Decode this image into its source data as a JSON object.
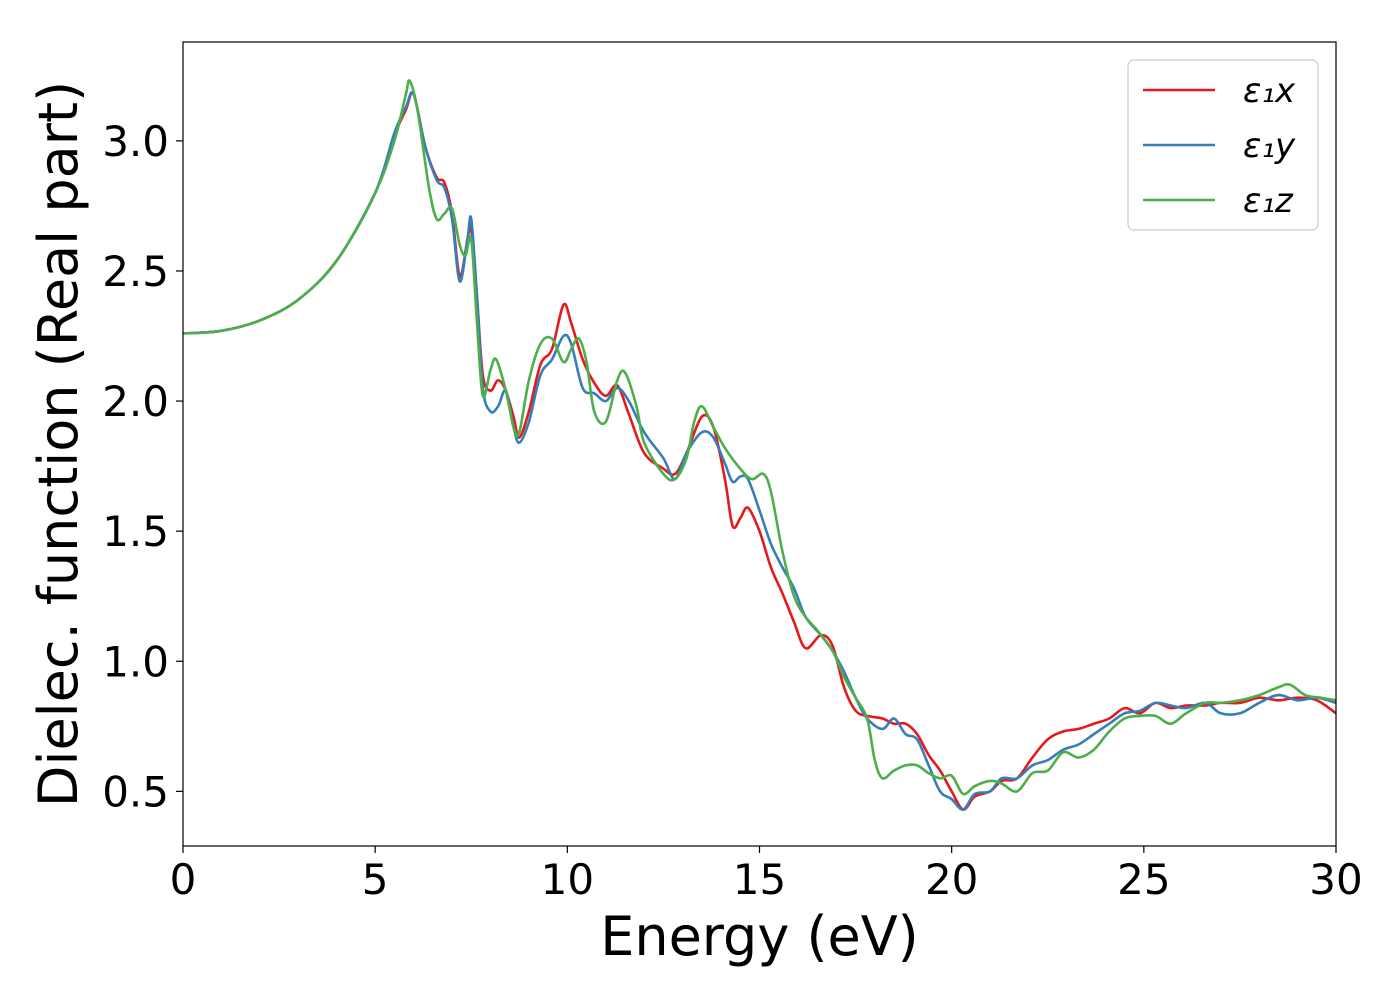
{
  "chart_data": {
    "type": "line",
    "title": "",
    "xlabel": "Energy (eV)",
    "ylabel": "Dielec. function (Real part)",
    "xlim": [
      0,
      30
    ],
    "ylim": [
      0.29,
      3.38
    ],
    "xticks": [
      0,
      5,
      10,
      15,
      20,
      25,
      30
    ],
    "yticks": [
      0.5,
      1.0,
      1.5,
      2.0,
      2.5,
      3.0
    ],
    "xtick_labels": [
      "0",
      "5",
      "10",
      "15",
      "20",
      "25",
      "30"
    ],
    "ytick_labels": [
      "0.5",
      "1.0",
      "1.5",
      "2.0",
      "2.5",
      "3.0"
    ],
    "grid": false,
    "legend_position": "top-right",
    "series": [
      {
        "name": "ε₁x",
        "color": "#e41a1c",
        "points": [
          [
            0,
            2.26
          ],
          [
            1,
            2.27
          ],
          [
            2,
            2.31
          ],
          [
            3,
            2.39
          ],
          [
            4,
            2.54
          ],
          [
            5,
            2.8
          ],
          [
            5.5,
            3.02
          ],
          [
            5.8,
            3.12
          ],
          [
            6.0,
            3.18
          ],
          [
            6.3,
            2.98
          ],
          [
            6.6,
            2.86
          ],
          [
            6.8,
            2.84
          ],
          [
            7.0,
            2.72
          ],
          [
            7.2,
            2.48
          ],
          [
            7.4,
            2.62
          ],
          [
            7.5,
            2.66
          ],
          [
            7.65,
            2.4
          ],
          [
            7.8,
            2.1
          ],
          [
            8.0,
            2.04
          ],
          [
            8.2,
            2.08
          ],
          [
            8.4,
            2.04
          ],
          [
            8.6,
            1.94
          ],
          [
            8.75,
            1.86
          ],
          [
            9.0,
            1.96
          ],
          [
            9.3,
            2.14
          ],
          [
            9.6,
            2.2
          ],
          [
            9.9,
            2.37
          ],
          [
            10.1,
            2.3
          ],
          [
            10.4,
            2.16
          ],
          [
            10.7,
            2.07
          ],
          [
            11.0,
            2.02
          ],
          [
            11.3,
            2.06
          ],
          [
            11.6,
            1.95
          ],
          [
            12.0,
            1.8
          ],
          [
            12.5,
            1.74
          ],
          [
            12.8,
            1.72
          ],
          [
            13.1,
            1.8
          ],
          [
            13.5,
            1.94
          ],
          [
            13.8,
            1.9
          ],
          [
            14.1,
            1.7
          ],
          [
            14.3,
            1.52
          ],
          [
            14.5,
            1.55
          ],
          [
            14.7,
            1.59
          ],
          [
            15.0,
            1.5
          ],
          [
            15.3,
            1.36
          ],
          [
            15.6,
            1.26
          ],
          [
            15.9,
            1.15
          ],
          [
            16.2,
            1.05
          ],
          [
            16.6,
            1.1
          ],
          [
            16.9,
            1.06
          ],
          [
            17.2,
            0.9
          ],
          [
            17.5,
            0.81
          ],
          [
            17.8,
            0.79
          ],
          [
            18.2,
            0.78
          ],
          [
            18.5,
            0.76
          ],
          [
            18.8,
            0.76
          ],
          [
            19.1,
            0.72
          ],
          [
            19.4,
            0.64
          ],
          [
            19.7,
            0.58
          ],
          [
            20.0,
            0.5
          ],
          [
            20.3,
            0.43
          ],
          [
            20.6,
            0.48
          ],
          [
            21.0,
            0.5
          ],
          [
            21.3,
            0.54
          ],
          [
            21.7,
            0.55
          ],
          [
            22.1,
            0.63
          ],
          [
            22.5,
            0.7
          ],
          [
            22.9,
            0.73
          ],
          [
            23.3,
            0.74
          ],
          [
            23.7,
            0.76
          ],
          [
            24.1,
            0.78
          ],
          [
            24.5,
            0.82
          ],
          [
            24.9,
            0.8
          ],
          [
            25.3,
            0.84
          ],
          [
            25.7,
            0.82
          ],
          [
            26.1,
            0.83
          ],
          [
            26.6,
            0.83
          ],
          [
            27.0,
            0.84
          ],
          [
            27.5,
            0.84
          ],
          [
            28.0,
            0.86
          ],
          [
            28.5,
            0.85
          ],
          [
            29.0,
            0.86
          ],
          [
            29.5,
            0.85
          ],
          [
            30,
            0.8
          ]
        ]
      },
      {
        "name": "ε₁y",
        "color": "#377eb8",
        "points": [
          [
            0,
            2.26
          ],
          [
            1,
            2.27
          ],
          [
            2,
            2.31
          ],
          [
            3,
            2.39
          ],
          [
            4,
            2.54
          ],
          [
            5,
            2.8
          ],
          [
            5.5,
            3.03
          ],
          [
            5.8,
            3.13
          ],
          [
            6.0,
            3.18
          ],
          [
            6.3,
            2.98
          ],
          [
            6.6,
            2.85
          ],
          [
            6.8,
            2.82
          ],
          [
            7.0,
            2.7
          ],
          [
            7.2,
            2.46
          ],
          [
            7.4,
            2.62
          ],
          [
            7.5,
            2.7
          ],
          [
            7.65,
            2.4
          ],
          [
            7.8,
            2.05
          ],
          [
            8.0,
            1.96
          ],
          [
            8.2,
            1.98
          ],
          [
            8.4,
            2.04
          ],
          [
            8.6,
            1.9
          ],
          [
            8.75,
            1.84
          ],
          [
            9.0,
            1.92
          ],
          [
            9.3,
            2.1
          ],
          [
            9.6,
            2.16
          ],
          [
            9.9,
            2.25
          ],
          [
            10.1,
            2.22
          ],
          [
            10.4,
            2.05
          ],
          [
            10.7,
            2.03
          ],
          [
            11.0,
            2.0
          ],
          [
            11.3,
            2.05
          ],
          [
            11.6,
            2.0
          ],
          [
            12.0,
            1.88
          ],
          [
            12.5,
            1.78
          ],
          [
            12.8,
            1.7
          ],
          [
            13.1,
            1.8
          ],
          [
            13.5,
            1.88
          ],
          [
            13.8,
            1.86
          ],
          [
            14.1,
            1.76
          ],
          [
            14.3,
            1.69
          ],
          [
            14.5,
            1.71
          ],
          [
            14.7,
            1.7
          ],
          [
            15.0,
            1.58
          ],
          [
            15.3,
            1.45
          ],
          [
            15.6,
            1.36
          ],
          [
            15.9,
            1.28
          ],
          [
            16.2,
            1.17
          ],
          [
            16.6,
            1.1
          ],
          [
            16.9,
            1.04
          ],
          [
            17.2,
            0.96
          ],
          [
            17.5,
            0.86
          ],
          [
            17.8,
            0.78
          ],
          [
            18.2,
            0.74
          ],
          [
            18.5,
            0.78
          ],
          [
            18.8,
            0.72
          ],
          [
            19.1,
            0.7
          ],
          [
            19.4,
            0.6
          ],
          [
            19.7,
            0.5
          ],
          [
            20.0,
            0.47
          ],
          [
            20.3,
            0.43
          ],
          [
            20.6,
            0.49
          ],
          [
            21.0,
            0.5
          ],
          [
            21.3,
            0.55
          ],
          [
            21.7,
            0.55
          ],
          [
            22.1,
            0.6
          ],
          [
            22.5,
            0.62
          ],
          [
            22.9,
            0.66
          ],
          [
            23.3,
            0.68
          ],
          [
            23.7,
            0.72
          ],
          [
            24.1,
            0.76
          ],
          [
            24.5,
            0.8
          ],
          [
            24.9,
            0.81
          ],
          [
            25.3,
            0.84
          ],
          [
            25.7,
            0.83
          ],
          [
            26.1,
            0.82
          ],
          [
            26.6,
            0.84
          ],
          [
            27.0,
            0.8
          ],
          [
            27.5,
            0.8
          ],
          [
            28.0,
            0.84
          ],
          [
            28.5,
            0.87
          ],
          [
            29.0,
            0.85
          ],
          [
            29.5,
            0.86
          ],
          [
            30,
            0.84
          ]
        ]
      },
      {
        "name": "ε₁z",
        "color": "#4daf4a",
        "points": [
          [
            0,
            2.26
          ],
          [
            1,
            2.27
          ],
          [
            2,
            2.31
          ],
          [
            3,
            2.39
          ],
          [
            4,
            2.54
          ],
          [
            5,
            2.8
          ],
          [
            5.5,
            3.0
          ],
          [
            5.8,
            3.18
          ],
          [
            5.9,
            3.23
          ],
          [
            6.1,
            3.12
          ],
          [
            6.4,
            2.82
          ],
          [
            6.6,
            2.7
          ],
          [
            6.8,
            2.72
          ],
          [
            7.0,
            2.74
          ],
          [
            7.2,
            2.6
          ],
          [
            7.35,
            2.56
          ],
          [
            7.5,
            2.62
          ],
          [
            7.65,
            2.3
          ],
          [
            7.8,
            2.02
          ],
          [
            8.0,
            2.12
          ],
          [
            8.15,
            2.16
          ],
          [
            8.4,
            2.04
          ],
          [
            8.6,
            1.9
          ],
          [
            8.75,
            1.88
          ],
          [
            9.0,
            2.08
          ],
          [
            9.3,
            2.22
          ],
          [
            9.6,
            2.24
          ],
          [
            9.9,
            2.15
          ],
          [
            10.1,
            2.2
          ],
          [
            10.3,
            2.24
          ],
          [
            10.5,
            2.15
          ],
          [
            10.7,
            1.96
          ],
          [
            11.0,
            1.92
          ],
          [
            11.3,
            2.08
          ],
          [
            11.5,
            2.11
          ],
          [
            11.8,
            1.98
          ],
          [
            12.0,
            1.84
          ],
          [
            12.5,
            1.72
          ],
          [
            12.8,
            1.7
          ],
          [
            13.1,
            1.78
          ],
          [
            13.3,
            1.92
          ],
          [
            13.5,
            1.98
          ],
          [
            13.8,
            1.9
          ],
          [
            14.1,
            1.82
          ],
          [
            14.5,
            1.74
          ],
          [
            14.8,
            1.7
          ],
          [
            15.1,
            1.72
          ],
          [
            15.3,
            1.65
          ],
          [
            15.6,
            1.42
          ],
          [
            15.9,
            1.25
          ],
          [
            16.2,
            1.17
          ],
          [
            16.5,
            1.12
          ],
          [
            16.9,
            1.04
          ],
          [
            17.2,
            0.94
          ],
          [
            17.5,
            0.86
          ],
          [
            17.8,
            0.78
          ],
          [
            18.0,
            0.62
          ],
          [
            18.2,
            0.55
          ],
          [
            18.5,
            0.58
          ],
          [
            18.8,
            0.6
          ],
          [
            19.1,
            0.6
          ],
          [
            19.4,
            0.57
          ],
          [
            19.7,
            0.55
          ],
          [
            20.0,
            0.56
          ],
          [
            20.3,
            0.49
          ],
          [
            20.6,
            0.52
          ],
          [
            21.0,
            0.54
          ],
          [
            21.3,
            0.53
          ],
          [
            21.7,
            0.5
          ],
          [
            22.1,
            0.57
          ],
          [
            22.5,
            0.58
          ],
          [
            22.9,
            0.65
          ],
          [
            23.3,
            0.63
          ],
          [
            23.7,
            0.66
          ],
          [
            24.1,
            0.73
          ],
          [
            24.5,
            0.78
          ],
          [
            24.9,
            0.79
          ],
          [
            25.3,
            0.79
          ],
          [
            25.7,
            0.76
          ],
          [
            26.1,
            0.8
          ],
          [
            26.6,
            0.84
          ],
          [
            27.0,
            0.84
          ],
          [
            27.5,
            0.85
          ],
          [
            28.0,
            0.87
          ],
          [
            28.5,
            0.9
          ],
          [
            28.8,
            0.91
          ],
          [
            29.2,
            0.87
          ],
          [
            29.6,
            0.86
          ],
          [
            30,
            0.85
          ]
        ]
      }
    ]
  }
}
